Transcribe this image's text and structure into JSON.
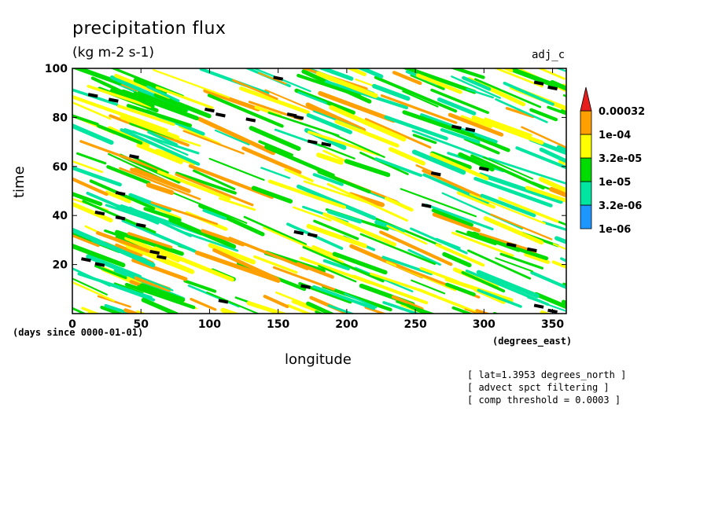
{
  "chart_data": {
    "type": "heatmap",
    "title": "precipitation flux",
    "units": "(kg m-2 s-1)",
    "label_right": "adj_c",
    "xlabel": "longitude",
    "ylabel": "time",
    "x_unit_label": "(degrees_east)",
    "y_unit_label": "(days since 0000-01-01)",
    "xlim": [
      0,
      360
    ],
    "ylim": [
      0,
      100
    ],
    "x_ticks": [
      0,
      50,
      100,
      150,
      200,
      250,
      300,
      350
    ],
    "y_ticks": [
      20,
      40,
      60,
      80,
      100
    ],
    "colorbar": {
      "levels": [
        "1e-06",
        "3.2e-06",
        "1e-05",
        "3.2e-05",
        "1e-04",
        "0.00032"
      ],
      "colors": [
        "#1e96ff",
        "#00e6a0",
        "#00dc00",
        "#ffff00",
        "#ffa000",
        "#e61e1e",
        "#000000"
      ]
    },
    "annotations": [
      "[ lat=1.3953 degrees_north ]",
      "[ advect spct filtering ]",
      "[ comp threshold = 0.0003 ]"
    ],
    "features": {
      "black_marks": [
        [
          15,
          89
        ],
        [
          30,
          87
        ],
        [
          100,
          83
        ],
        [
          108,
          81
        ],
        [
          130,
          79
        ],
        [
          150,
          96
        ],
        [
          160,
          81
        ],
        [
          165,
          80
        ],
        [
          175,
          70
        ],
        [
          185,
          69
        ],
        [
          45,
          64
        ],
        [
          35,
          49
        ],
        [
          20,
          41
        ],
        [
          35,
          39
        ],
        [
          50,
          36
        ],
        [
          10,
          22
        ],
        [
          20,
          20
        ],
        [
          60,
          25
        ],
        [
          65,
          23
        ],
        [
          110,
          5
        ],
        [
          165,
          33
        ],
        [
          175,
          32
        ],
        [
          170,
          11
        ],
        [
          258,
          44
        ],
        [
          265,
          57
        ],
        [
          280,
          76
        ],
        [
          290,
          75
        ],
        [
          300,
          59
        ],
        [
          340,
          94
        ],
        [
          350,
          92
        ],
        [
          320,
          28
        ],
        [
          335,
          26
        ],
        [
          340,
          3
        ],
        [
          350,
          1
        ]
      ]
    }
  }
}
